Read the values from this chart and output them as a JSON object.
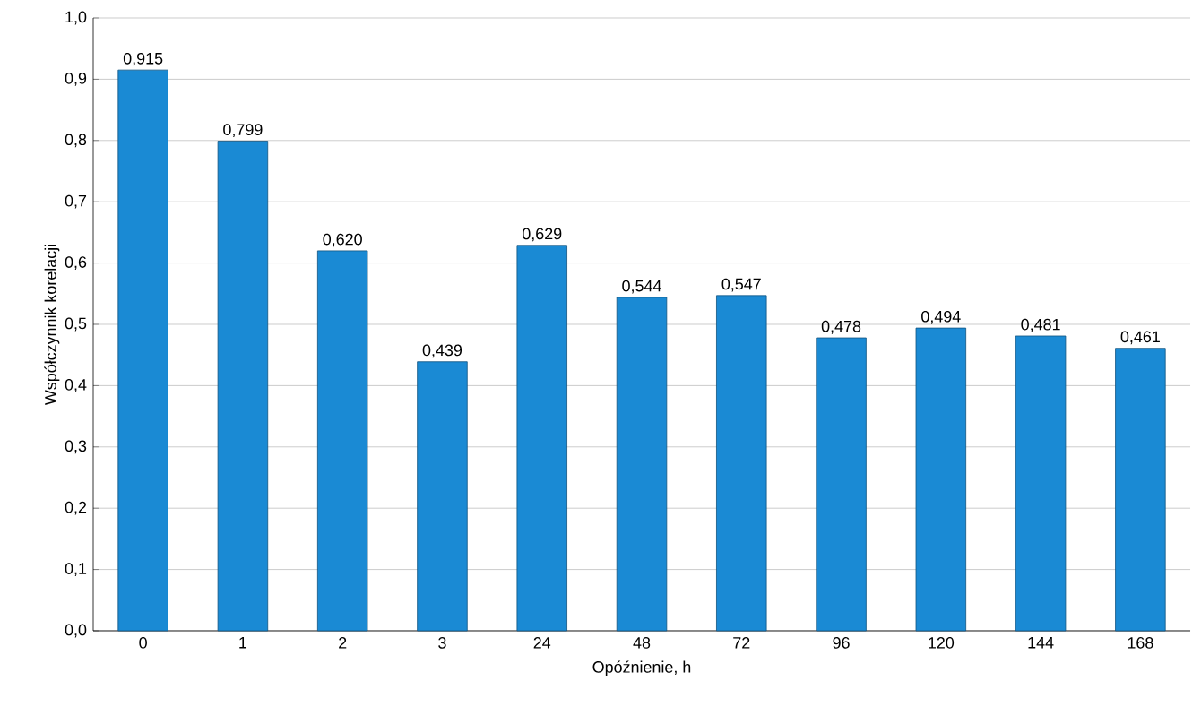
{
  "chart_data": {
    "type": "bar",
    "xlabel": "Opóźnienie, h",
    "ylabel": "Współczynnik korelacji",
    "categories": [
      "0",
      "1",
      "2",
      "3",
      "24",
      "48",
      "72",
      "96",
      "120",
      "144",
      "168"
    ],
    "values": [
      0.915,
      0.799,
      0.62,
      0.439,
      0.629,
      0.544,
      0.547,
      0.478,
      0.494,
      0.481,
      0.461
    ],
    "value_labels": [
      "0,915",
      "0,799",
      "0,620",
      "0,439",
      "0,629",
      "0,544",
      "0,547",
      "0,478",
      "0,494",
      "0,481",
      "0,461"
    ],
    "color": "#1a8ad4",
    "ylim": [
      0,
      1
    ],
    "yticks": [
      {
        "value": 0,
        "label": "0,0"
      },
      {
        "value": 0.1,
        "label": "0,1"
      },
      {
        "value": 0.2,
        "label": "0,2"
      },
      {
        "value": 0.3,
        "label": "0,3"
      },
      {
        "value": 0.4,
        "label": "0,4"
      },
      {
        "value": 0.5,
        "label": "0,5"
      },
      {
        "value": 0.6,
        "label": "0,6"
      },
      {
        "value": 0.7,
        "label": "0,7"
      },
      {
        "value": 0.8,
        "label": "0,8"
      },
      {
        "value": 0.9,
        "label": "0,9"
      },
      {
        "value": 1.0,
        "label": "1,0"
      }
    ],
    "grid": "y"
  }
}
